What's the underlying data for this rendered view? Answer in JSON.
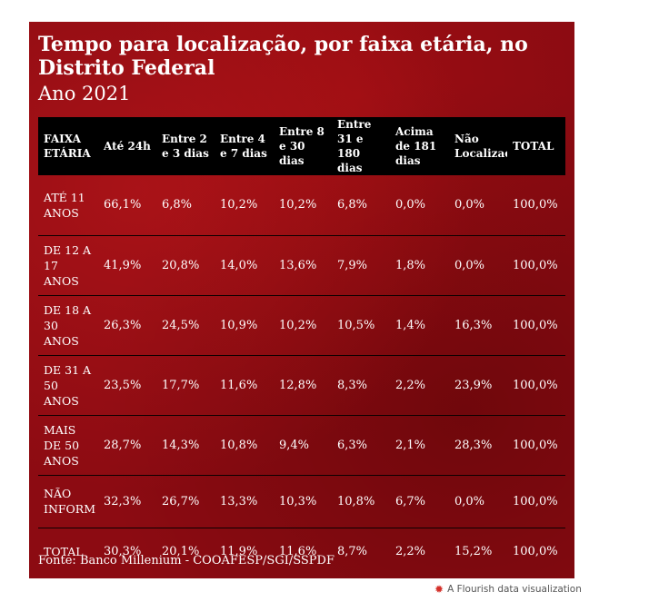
{
  "title": "Tempo para localização, por faixa etária, no Distrito Federal",
  "subtitle": "Ano 2021",
  "source": "Fonte: Banco Millenium - COOAFESP/SGI/SSPDF",
  "footer": {
    "text": "A Flourish data visualization",
    "icon": "flourish-logo-icon"
  },
  "colors": {
    "panel": "#8c0b12",
    "header": "#000000",
    "text": "#ffffff"
  },
  "chart_data": {
    "type": "table",
    "columns": [
      "FAIXA ETÁRIA",
      "Até 24h",
      "Entre 2 e 3 dias",
      "Entre 4 e 7 dias",
      "Entre 8 e 30 dias",
      "Entre 31 e 180 dias",
      "Acima de 181 dias",
      "Não Localizado",
      "TOTAL"
    ],
    "rows": [
      [
        "ATÉ 11 ANOS",
        "66,1%",
        "6,8%",
        "10,2%",
        "10,2%",
        "6,8%",
        "0,0%",
        "0,0%",
        "100,0%"
      ],
      [
        "DE 12 A 17 ANOS",
        "41,9%",
        "20,8%",
        "14,0%",
        "13,6%",
        "7,9%",
        "1,8%",
        "0,0%",
        "100,0%"
      ],
      [
        "DE 18 A 30 ANOS",
        "26,3%",
        "24,5%",
        "10,9%",
        "10,2%",
        "10,5%",
        "1,4%",
        "16,3%",
        "100,0%"
      ],
      [
        "DE 31 A 50 ANOS",
        "23,5%",
        "17,7%",
        "11,6%",
        "12,8%",
        "8,3%",
        "2,2%",
        "23,9%",
        "100,0%"
      ],
      [
        "MAIS DE 50 ANOS",
        "28,7%",
        "14,3%",
        "10,8%",
        "9,4%",
        "6,3%",
        "2,1%",
        "28,3%",
        "100,0%"
      ],
      [
        "NÃO INFORM",
        "32,3%",
        "26,7%",
        "13,3%",
        "10,3%",
        "10,8%",
        "6,7%",
        "0,0%",
        "100,0%"
      ],
      [
        "TOTAL",
        "30,3%",
        "20,1%",
        "11,9%",
        "11,6%",
        "8,7%",
        "2,2%",
        "15,2%",
        "100,0%"
      ]
    ]
  }
}
